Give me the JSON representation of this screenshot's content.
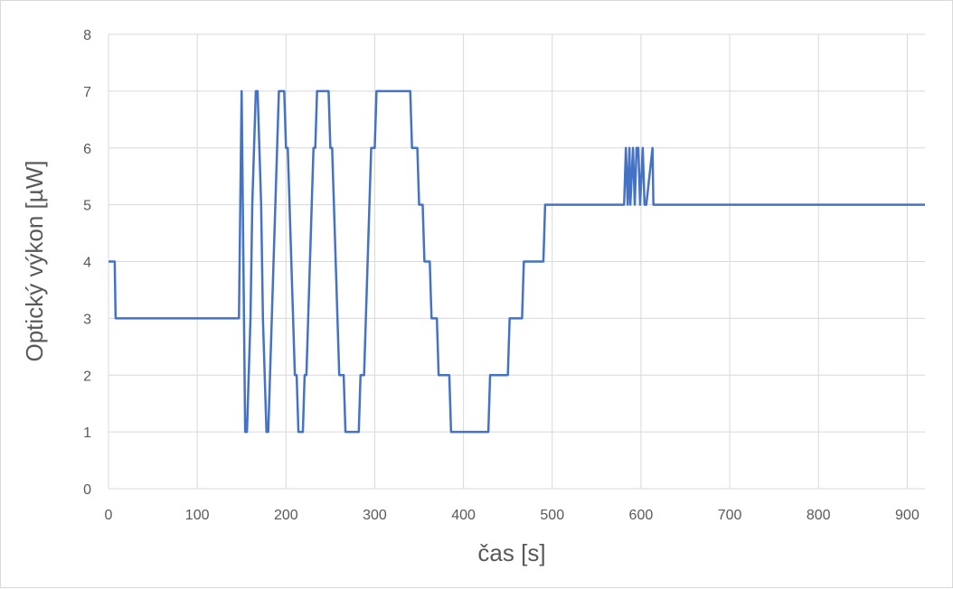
{
  "chart_data": {
    "type": "line",
    "title": "",
    "xlabel": "čas [s]",
    "ylabel": "Optický výkon [µW]",
    "xlim": [
      0,
      920
    ],
    "ylim": [
      0,
      8
    ],
    "x_ticks": [
      0,
      100,
      200,
      300,
      400,
      500,
      600,
      700,
      800,
      900
    ],
    "y_ticks": [
      0,
      1,
      2,
      3,
      4,
      5,
      6,
      7,
      8
    ],
    "grid": true,
    "legend": "none",
    "series": [
      {
        "color": "#4472c4",
        "points": [
          [
            0,
            4
          ],
          [
            3,
            4
          ],
          [
            4,
            4
          ],
          [
            5,
            4
          ],
          [
            7,
            4
          ],
          [
            8,
            3
          ],
          [
            10,
            3
          ],
          [
            147,
            3
          ],
          [
            150,
            7
          ],
          [
            152,
            4
          ],
          [
            154,
            1
          ],
          [
            156,
            1
          ],
          [
            158,
            2
          ],
          [
            160,
            3
          ],
          [
            162,
            5
          ],
          [
            164,
            6
          ],
          [
            166,
            7
          ],
          [
            168,
            7
          ],
          [
            170,
            6
          ],
          [
            172,
            5
          ],
          [
            174,
            3
          ],
          [
            176,
            2
          ],
          [
            178,
            1
          ],
          [
            180,
            1
          ],
          [
            182,
            2
          ],
          [
            184,
            3
          ],
          [
            186,
            4
          ],
          [
            188,
            5
          ],
          [
            190,
            6
          ],
          [
            192,
            7
          ],
          [
            198,
            7
          ],
          [
            200,
            6
          ],
          [
            202,
            6
          ],
          [
            204,
            5
          ],
          [
            206,
            4
          ],
          [
            208,
            3
          ],
          [
            210,
            2
          ],
          [
            212,
            2
          ],
          [
            214,
            1
          ],
          [
            219,
            1
          ],
          [
            221,
            2
          ],
          [
            223,
            2
          ],
          [
            225,
            3
          ],
          [
            227,
            4
          ],
          [
            229,
            5
          ],
          [
            231,
            6
          ],
          [
            233,
            6
          ],
          [
            235,
            7
          ],
          [
            248,
            7
          ],
          [
            250,
            6
          ],
          [
            252,
            6
          ],
          [
            254,
            5
          ],
          [
            256,
            4
          ],
          [
            258,
            3
          ],
          [
            260,
            2
          ],
          [
            265,
            2
          ],
          [
            267,
            1
          ],
          [
            282,
            1
          ],
          [
            284,
            2
          ],
          [
            288,
            2
          ],
          [
            290,
            3
          ],
          [
            292,
            4
          ],
          [
            294,
            5
          ],
          [
            296,
            6
          ],
          [
            300,
            6
          ],
          [
            302,
            7
          ],
          [
            340,
            7
          ],
          [
            342,
            6
          ],
          [
            348,
            6
          ],
          [
            350,
            5
          ],
          [
            354,
            5
          ],
          [
            356,
            4
          ],
          [
            362,
            4
          ],
          [
            364,
            3
          ],
          [
            370,
            3
          ],
          [
            372,
            2
          ],
          [
            384,
            2
          ],
          [
            386,
            1
          ],
          [
            428,
            1
          ],
          [
            430,
            2
          ],
          [
            450,
            2
          ],
          [
            452,
            3
          ],
          [
            466,
            3
          ],
          [
            468,
            4
          ],
          [
            490,
            4
          ],
          [
            492,
            5
          ],
          [
            581,
            5
          ],
          [
            583,
            6
          ],
          [
            585,
            5
          ],
          [
            587,
            6
          ],
          [
            588,
            5
          ],
          [
            591,
            6
          ],
          [
            593,
            5
          ],
          [
            595,
            6
          ],
          [
            597,
            6
          ],
          [
            599,
            5
          ],
          [
            602,
            6
          ],
          [
            604,
            5
          ],
          [
            606,
            5
          ],
          [
            613,
            6
          ],
          [
            614,
            5
          ],
          [
            920,
            5
          ]
        ]
      }
    ]
  }
}
